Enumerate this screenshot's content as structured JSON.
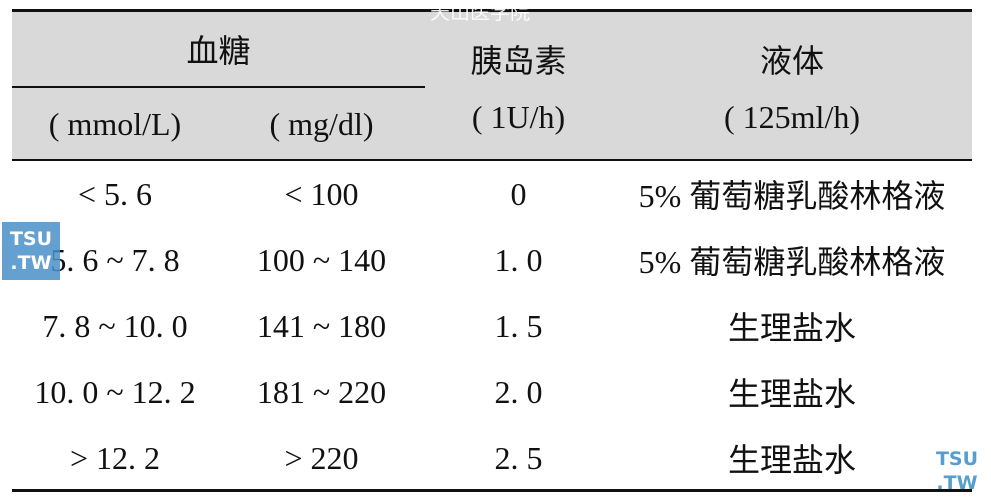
{
  "watermark": "天山医学院",
  "logos": [
    {
      "top": "TSU",
      "bottom": ".TW"
    },
    {
      "top": "TSU",
      "bottom": ".TW"
    }
  ],
  "header": {
    "blood_glucose": "血糖",
    "glucose_units": [
      "( mmol/L)",
      "( mg/dl)"
    ],
    "insulin": "胰岛素",
    "insulin_unit": "( 1U/h)",
    "fluid": "液体",
    "fluid_unit": "( 125ml/h)"
  },
  "rows": [
    [
      "< 5. 6",
      "< 100",
      "0",
      "5% 葡萄糖乳酸林格液"
    ],
    [
      "5. 6 ~ 7. 8",
      "100 ~ 140",
      "1. 0",
      "5% 葡萄糖乳酸林格液"
    ],
    [
      "7. 8 ~ 10. 0",
      "141 ~ 180",
      "1. 5",
      "生理盐水"
    ],
    [
      "10. 0 ~ 12. 2",
      "181 ~ 220",
      "2. 0",
      "生理盐水"
    ],
    [
      "> 12. 2",
      "> 220",
      "2. 5",
      "生理盐水"
    ]
  ]
}
